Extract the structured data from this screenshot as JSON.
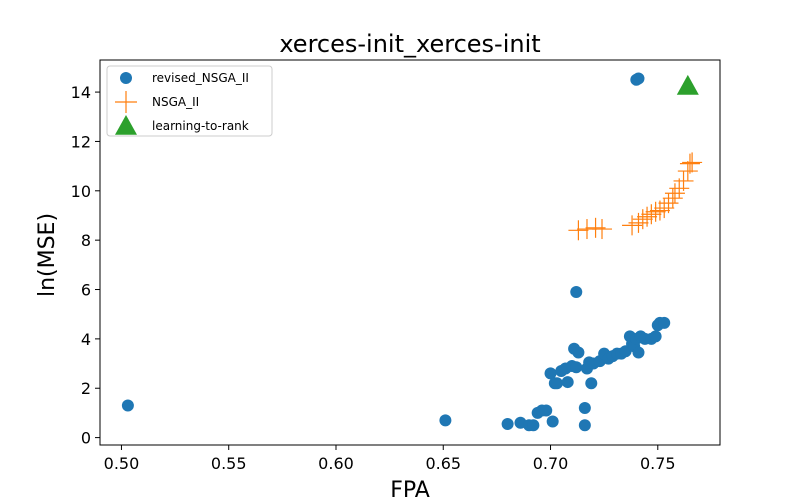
{
  "chart_data": {
    "type": "scatter",
    "title": "xerces-init_xerces-init",
    "xlabel": "FPA",
    "ylabel": "ln(MSE)",
    "xlim": [
      0.49,
      0.779
    ],
    "ylim": [
      -0.3,
      15.3
    ],
    "xticks": [
      "0.50",
      "0.55",
      "0.60",
      "0.65",
      "0.70",
      "0.75"
    ],
    "xtick_values": [
      0.5,
      0.55,
      0.6,
      0.65,
      0.7,
      0.75
    ],
    "yticks": [
      "0",
      "2",
      "4",
      "6",
      "8",
      "10",
      "12",
      "14"
    ],
    "ytick_values": [
      0,
      2,
      4,
      6,
      8,
      10,
      12,
      14
    ],
    "grid": false,
    "legend_position": "top-left",
    "series": [
      {
        "name": "revised_NSGA_II",
        "marker": "circle",
        "color": "#1f77b4",
        "x": [
          0.503,
          0.651,
          0.68,
          0.686,
          0.69,
          0.692,
          0.694,
          0.696,
          0.698,
          0.7,
          0.701,
          0.702,
          0.703,
          0.705,
          0.707,
          0.708,
          0.71,
          0.711,
          0.712,
          0.712,
          0.713,
          0.716,
          0.716,
          0.717,
          0.718,
          0.719,
          0.72,
          0.723,
          0.725,
          0.727,
          0.729,
          0.731,
          0.733,
          0.735,
          0.737,
          0.738,
          0.739,
          0.74,
          0.741,
          0.742,
          0.744,
          0.747,
          0.749,
          0.75,
          0.751,
          0.753,
          0.74,
          0.741
        ],
        "y": [
          1.3,
          0.7,
          0.55,
          0.6,
          0.5,
          0.5,
          1.0,
          1.1,
          1.1,
          2.6,
          0.65,
          2.2,
          2.2,
          2.7,
          2.8,
          2.25,
          2.9,
          3.6,
          5.9,
          2.85,
          3.45,
          0.5,
          1.2,
          2.8,
          3.05,
          2.2,
          3.0,
          3.1,
          3.4,
          3.2,
          3.3,
          3.4,
          3.4,
          3.5,
          4.1,
          3.8,
          3.7,
          4.0,
          3.45,
          4.1,
          4.0,
          4.0,
          4.1,
          4.55,
          4.65,
          4.65,
          14.5,
          14.55
        ]
      },
      {
        "name": "NSGA_II",
        "marker": "plus",
        "color": "#ff7f0e",
        "x": [
          0.713,
          0.717,
          0.721,
          0.724,
          0.738,
          0.741,
          0.743,
          0.745,
          0.747,
          0.749,
          0.751,
          0.753,
          0.755,
          0.757,
          0.758,
          0.76,
          0.762,
          0.764,
          0.765,
          0.766
        ],
        "y": [
          8.4,
          8.45,
          8.5,
          8.45,
          8.6,
          8.7,
          8.85,
          8.95,
          9.05,
          9.15,
          9.2,
          9.3,
          9.5,
          9.7,
          9.9,
          10.1,
          10.4,
          10.8,
          11.1,
          11.15
        ]
      },
      {
        "name": "learning-to-rank",
        "marker": "triangle",
        "color": "#2ca02c",
        "x": [
          0.764
        ],
        "y": [
          14.25
        ]
      }
    ]
  }
}
